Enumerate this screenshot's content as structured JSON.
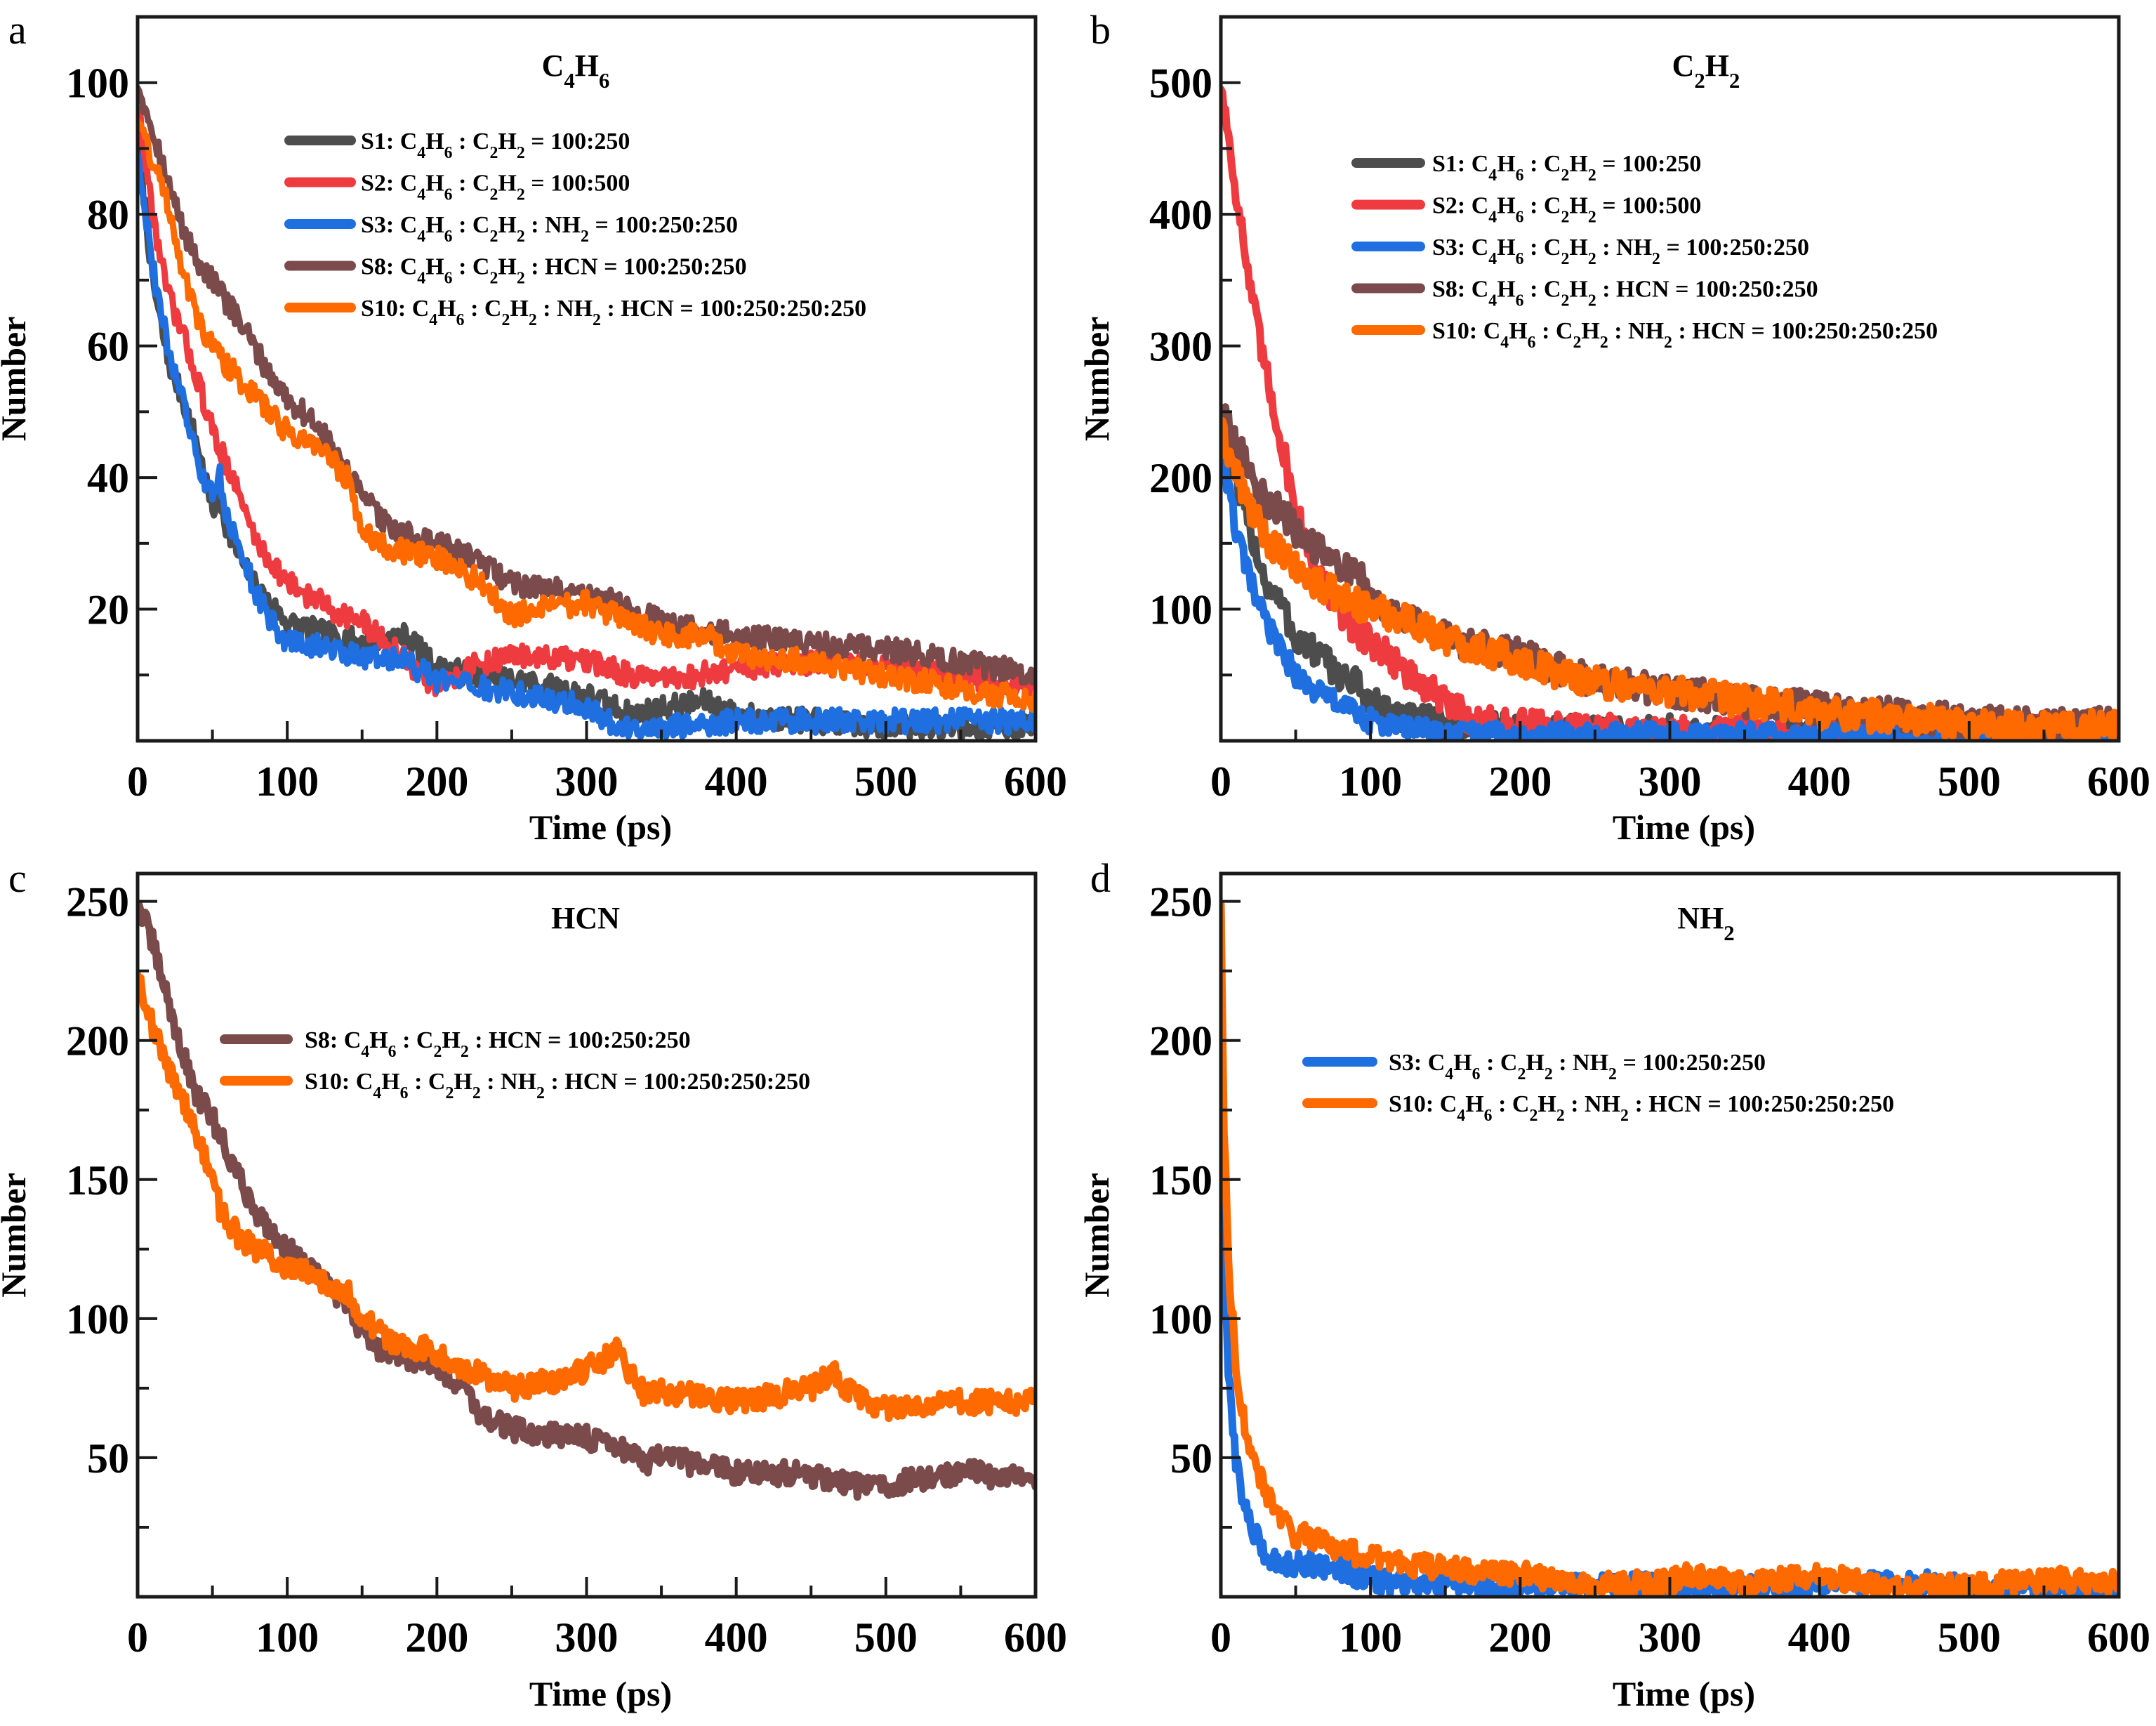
{
  "chart_data": [
    {
      "type": "line",
      "panel_letter": "a",
      "title": "C4H6",
      "title_rich": [
        {
          "t": "C"
        },
        {
          "t": "4",
          "sub": true
        },
        {
          "t": "H"
        },
        {
          "t": "6",
          "sub": true
        }
      ],
      "xlabel": "Time (ps)",
      "ylabel": "Number",
      "xlim": [
        0,
        600
      ],
      "ylim": [
        0,
        110
      ],
      "xticks": [
        0,
        100,
        200,
        300,
        400,
        500,
        600
      ],
      "yticks": [
        20,
        40,
        60,
        80,
        100
      ],
      "grid": false,
      "legend_position": "top-right",
      "series": [
        {
          "name": "S1: C4H6 : C2H2 = 100:250",
          "color": "#4d4d4d",
          "noise": 3,
          "x": [
            0,
            10,
            20,
            30,
            40,
            50,
            55,
            60,
            70,
            80,
            100,
            130,
            150,
            180,
            200,
            230,
            260,
            300,
            330,
            350,
            380,
            400,
            450,
            500,
            600
          ],
          "y": [
            92,
            70,
            58,
            52,
            45,
            35,
            37,
            32,
            27,
            23,
            18,
            16,
            15,
            16,
            11,
            10,
            9,
            7,
            4,
            5,
            6,
            4,
            3,
            2,
            2
          ]
        },
        {
          "name": "S2: C4H6 : C2H2 = 100:500",
          "color": "#ee3b3f",
          "noise": 3,
          "x": [
            0,
            10,
            20,
            30,
            40,
            50,
            60,
            70,
            80,
            100,
            130,
            150,
            180,
            200,
            220,
            250,
            300,
            330,
            350,
            400,
            450,
            500,
            550,
            600
          ],
          "y": [
            97,
            80,
            68,
            62,
            55,
            47,
            42,
            36,
            30,
            24,
            20,
            18,
            12,
            8,
            11,
            13,
            12,
            10,
            9,
            11,
            12,
            11,
            10,
            8
          ]
        },
        {
          "name": "S3: C4H6 : C2H2 : NH2 = 100:250:250",
          "color": "#1f6fe0",
          "noise": 3,
          "x": [
            0,
            10,
            20,
            30,
            40,
            50,
            55,
            60,
            70,
            80,
            90,
            100,
            130,
            150,
            180,
            200,
            230,
            260,
            300,
            320,
            350,
            400,
            450,
            500,
            600
          ],
          "y": [
            90,
            72,
            60,
            52,
            42,
            37,
            40,
            34,
            28,
            22,
            18,
            15,
            14,
            13,
            12,
            9,
            8,
            7,
            5,
            2,
            2,
            3,
            3,
            3,
            3
          ]
        },
        {
          "name": "S8: C4H6 : C2H2 : HCN = 100:250:250",
          "color": "#7b4a4b",
          "noise": 3,
          "x": [
            0,
            10,
            20,
            30,
            40,
            50,
            70,
            90,
            100,
            120,
            150,
            170,
            200,
            230,
            250,
            280,
            300,
            320,
            350,
            400,
            450,
            500,
            550,
            600
          ],
          "y": [
            100,
            93,
            85,
            78,
            73,
            70,
            63,
            55,
            52,
            48,
            37,
            32,
            30,
            27,
            24,
            23,
            22,
            21,
            18,
            16,
            15,
            14,
            12,
            10
          ]
        },
        {
          "name": "S10: C4H6 : C2H2 : NH2 : HCN = 100:250:250:250",
          "color": "#ff6a00",
          "noise": 3,
          "x": [
            0,
            10,
            20,
            30,
            40,
            50,
            60,
            80,
            100,
            120,
            140,
            150,
            170,
            200,
            230,
            250,
            270,
            300,
            330,
            350,
            380,
            400,
            450,
            500,
            550,
            600
          ],
          "y": [
            95,
            88,
            82,
            72,
            64,
            60,
            57,
            52,
            47,
            45,
            40,
            32,
            29,
            28,
            24,
            19,
            20,
            21,
            18,
            16,
            16,
            13,
            12,
            10,
            8,
            6
          ]
        }
      ]
    },
    {
      "type": "line",
      "panel_letter": "b",
      "title": "C2H2",
      "title_rich": [
        {
          "t": "C"
        },
        {
          "t": "2",
          "sub": true
        },
        {
          "t": "H"
        },
        {
          "t": "2",
          "sub": true
        }
      ],
      "xlabel": "Time (ps)",
      "ylabel": "Number",
      "xlim": [
        0,
        600
      ],
      "ylim": [
        0,
        550
      ],
      "xticks": [
        0,
        100,
        200,
        300,
        400,
        500,
        600
      ],
      "yticks": [
        100,
        200,
        300,
        400,
        500
      ],
      "grid": false,
      "legend_position": "top-right",
      "series": [
        {
          "name": "S1: C4H6 : C2H2 = 100:250",
          "color": "#4d4d4d",
          "noise": 4,
          "x": [
            0,
            10,
            20,
            30,
            40,
            50,
            60,
            80,
            90,
            100,
            120,
            150,
            200,
            250,
            300,
            400,
            500,
            600
          ],
          "y": [
            240,
            195,
            160,
            120,
            105,
            78,
            70,
            50,
            43,
            30,
            18,
            12,
            8,
            6,
            7,
            5,
            6,
            8
          ]
        },
        {
          "name": "S2: C4H6 : C2H2 = 100:500",
          "color": "#ee3b3f",
          "noise": 4,
          "x": [
            0,
            10,
            20,
            30,
            40,
            50,
            60,
            80,
            100,
            110,
            130,
            150,
            170,
            200,
            250,
            300,
            400,
            500,
            600
          ],
          "y": [
            500,
            420,
            340,
            280,
            230,
            175,
            140,
            95,
            75,
            68,
            45,
            30,
            15,
            12,
            8,
            6,
            5,
            7,
            10
          ]
        },
        {
          "name": "S3: C4H6 : C2H2 : NH2 = 100:250:250",
          "color": "#1f6fe0",
          "noise": 3,
          "x": [
            0,
            10,
            20,
            30,
            40,
            50,
            60,
            80,
            100,
            120,
            150,
            200,
            250,
            300,
            400,
            500,
            600
          ],
          "y": [
            225,
            160,
            120,
            90,
            70,
            50,
            40,
            28,
            15,
            10,
            6,
            5,
            4,
            4,
            4,
            4,
            4
          ]
        },
        {
          "name": "S8: C4H6 : C2H2 : HCN = 100:250:250",
          "color": "#7b4a4b",
          "noise": 4,
          "x": [
            0,
            10,
            20,
            30,
            40,
            50,
            70,
            90,
            100,
            130,
            150,
            200,
            250,
            300,
            350,
            400,
            450,
            500,
            550,
            600
          ],
          "y": [
            250,
            225,
            205,
            180,
            175,
            160,
            140,
            130,
            110,
            90,
            78,
            65,
            45,
            38,
            30,
            25,
            20,
            15,
            12,
            14
          ]
        },
        {
          "name": "S10: C4H6 : C2H2 : NH2 : HCN = 100:250:250:250",
          "color": "#ff6a00",
          "noise": 4,
          "x": [
            0,
            10,
            20,
            30,
            50,
            70,
            100,
            120,
            150,
            200,
            250,
            300,
            350,
            400,
            450,
            500,
            550,
            600
          ],
          "y": [
            235,
            205,
            175,
            155,
            130,
            115,
            100,
            95,
            78,
            60,
            45,
            38,
            30,
            22,
            18,
            12,
            10,
            12
          ]
        }
      ]
    },
    {
      "type": "line",
      "panel_letter": "c",
      "title": "HCN",
      "title_rich": [
        {
          "t": "HCN"
        }
      ],
      "xlabel": "Time (ps)",
      "ylabel": "Number",
      "xlim": [
        0,
        600
      ],
      "ylim": [
        0,
        260
      ],
      "xticks": [
        0,
        100,
        200,
        300,
        400,
        500,
        600
      ],
      "yticks": [
        50,
        100,
        150,
        200,
        250
      ],
      "grid": false,
      "legend_position": "top-right",
      "series": [
        {
          "name": "S8: C4H6 : C2H2 : HCN = 100:250:250",
          "color": "#7b4a4b",
          "noise": 3,
          "x": [
            0,
            10,
            20,
            30,
            40,
            50,
            60,
            70,
            80,
            100,
            120,
            130,
            140,
            150,
            160,
            200,
            220,
            230,
            250,
            300,
            320,
            340,
            350,
            400,
            450,
            480,
            500,
            550,
            600
          ],
          "y": [
            250,
            235,
            215,
            195,
            180,
            172,
            160,
            148,
            138,
            125,
            115,
            110,
            105,
            95,
            90,
            83,
            75,
            65,
            60,
            57,
            55,
            48,
            50,
            45,
            44,
            40,
            40,
            45,
            42
          ]
        },
        {
          "name": "S10: C4H6 : C2H2 : NH2 : HCN = 100:250:250:250",
          "color": "#ff6a00",
          "noise": 3,
          "x": [
            0,
            10,
            20,
            30,
            40,
            50,
            55,
            60,
            70,
            80,
            100,
            120,
            140,
            150,
            170,
            200,
            220,
            250,
            280,
            300,
            320,
            340,
            350,
            400,
            450,
            465,
            480,
            500,
            550,
            600
          ],
          "y": [
            225,
            205,
            190,
            180,
            165,
            150,
            140,
            135,
            128,
            125,
            118,
            115,
            110,
            100,
            92,
            88,
            82,
            75,
            78,
            82,
            88,
            72,
            74,
            70,
            75,
            80,
            72,
            68,
            70,
            70
          ]
        }
      ]
    },
    {
      "type": "line",
      "panel_letter": "d",
      "title": "NH2",
      "title_rich": [
        {
          "t": "NH"
        },
        {
          "t": "2",
          "sub": true
        }
      ],
      "xlabel": "Time (ps)",
      "ylabel": "Number",
      "xlim": [
        0,
        600
      ],
      "ylim": [
        0,
        260
      ],
      "xticks": [
        0,
        100,
        200,
        300,
        400,
        500,
        600
      ],
      "yticks": [
        50,
        100,
        150,
        200,
        250
      ],
      "grid": false,
      "legend_position": "top-right",
      "series": [
        {
          "name": "S3: C4H6 : C2H2 : NH2 = 100:250:250",
          "color": "#1f6fe0",
          "noise": 3,
          "x": [
            0,
            2,
            5,
            10,
            15,
            20,
            30,
            40,
            60,
            80,
            100,
            120,
            150,
            200,
            250,
            300,
            400,
            470,
            500,
            600
          ],
          "y": [
            250,
            120,
            80,
            50,
            35,
            25,
            15,
            12,
            12,
            10,
            6,
            5,
            4,
            3,
            4,
            4,
            3,
            6,
            3,
            2
          ]
        },
        {
          "name": "S10: C4H6 : C2H2 : NH2 : HCN = 100:250:250:250",
          "color": "#ff6a00",
          "noise": 3,
          "x": [
            0,
            2,
            5,
            10,
            15,
            20,
            30,
            40,
            50,
            60,
            70,
            80,
            100,
            150,
            200,
            250,
            300,
            310,
            350,
            400,
            450,
            500,
            560,
            600
          ],
          "y": [
            250,
            170,
            120,
            85,
            65,
            50,
            38,
            28,
            22,
            22,
            20,
            17,
            14,
            10,
            8,
            5,
            5,
            8,
            4,
            8,
            3,
            4,
            6,
            5
          ]
        }
      ]
    }
  ]
}
